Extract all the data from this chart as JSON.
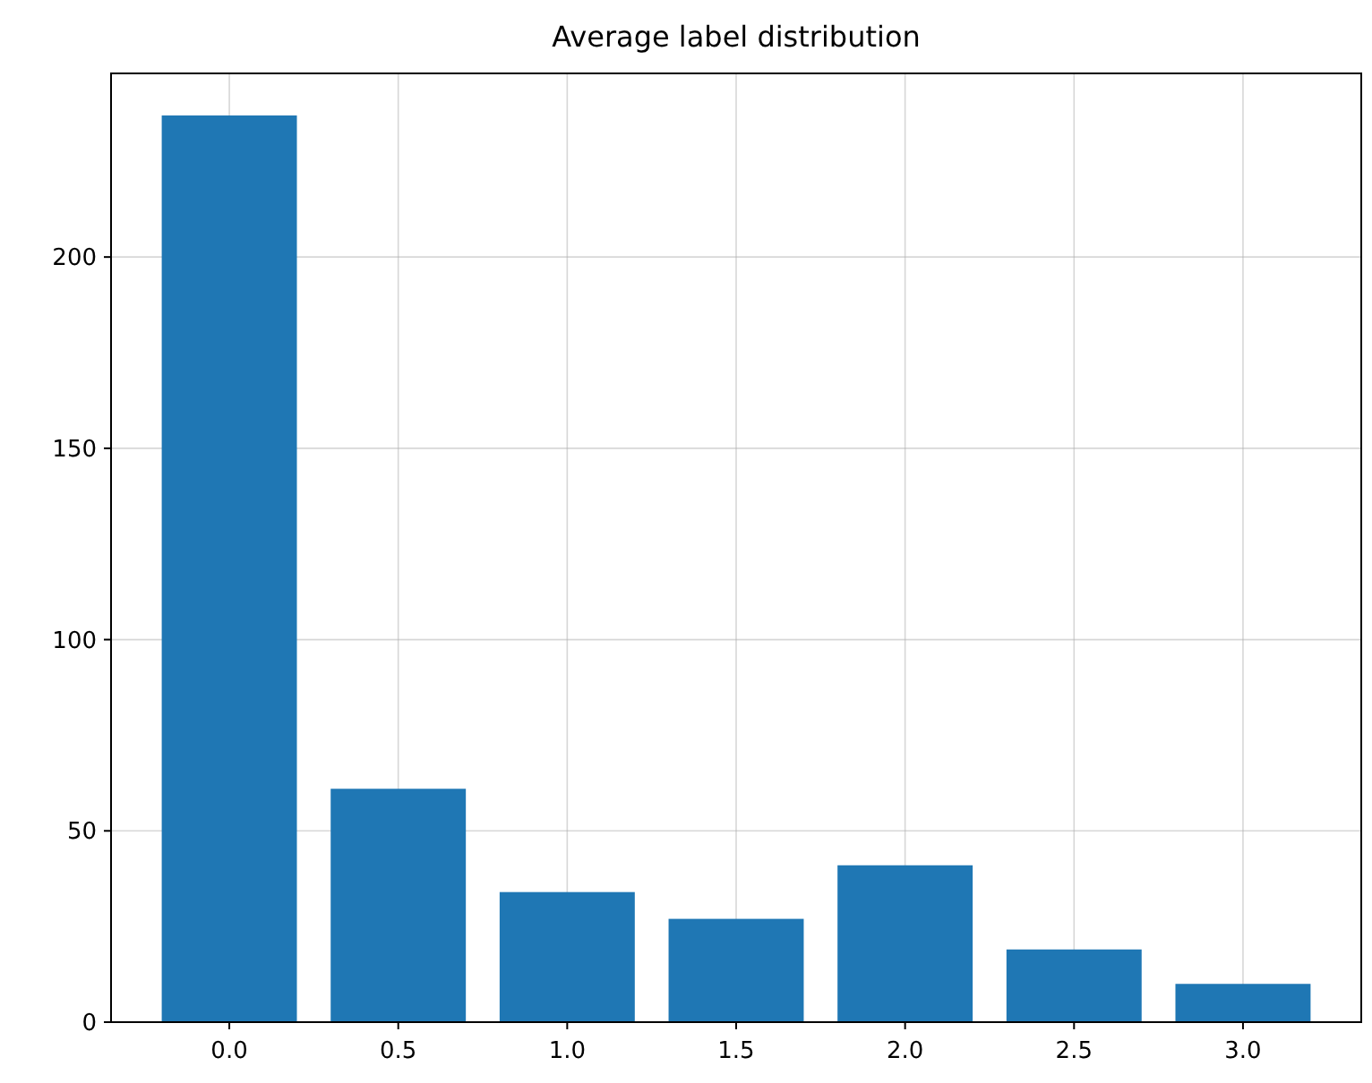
{
  "chart_data": {
    "type": "bar",
    "title": "Average label distribution",
    "categories": [
      "0.0",
      "0.5",
      "1.0",
      "1.5",
      "2.0",
      "2.5",
      "3.0"
    ],
    "values": [
      237,
      61,
      34,
      27,
      41,
      19,
      10
    ],
    "color": "#1f77b4",
    "ylim": [
      0,
      248
    ],
    "yticks": [
      0,
      50,
      100,
      150,
      200
    ],
    "grid": true
  }
}
